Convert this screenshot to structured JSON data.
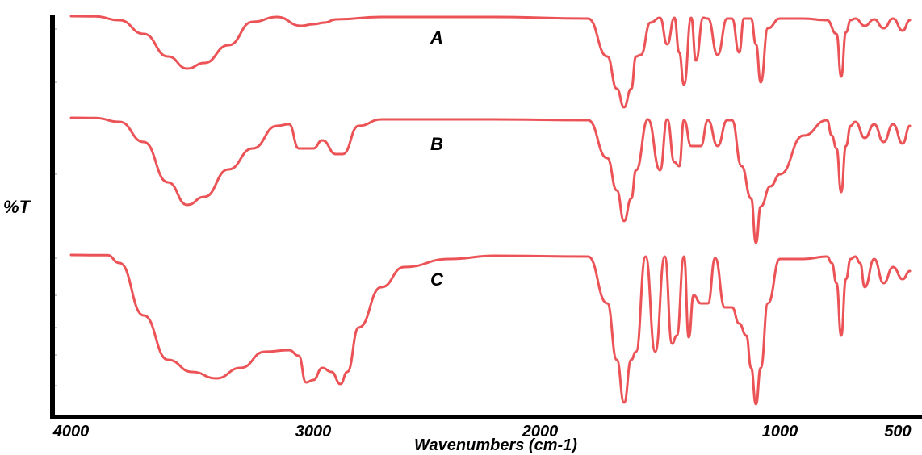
{
  "chart_data": {
    "type": "line",
    "title": "",
    "xlabel": "Wavenumbers (cm-1)",
    "ylabel": "%T",
    "xlim": [
      4000,
      450
    ],
    "x_reversed": true,
    "x_ticks": [
      4000,
      3000,
      2000,
      1000,
      500
    ],
    "x_tick_labels": [
      "4000",
      "3000",
      "2000",
      "1000",
      "500"
    ],
    "grid": false,
    "legend": "none",
    "line_color": "#e8353a",
    "series": [
      {
        "name": "A",
        "x": [
          4000,
          3900,
          3800,
          3700,
          3600,
          3520,
          3450,
          3350,
          3250,
          3150,
          3050,
          3000,
          2950,
          2900,
          2700,
          2200,
          1800,
          1720,
          1680,
          1650,
          1620,
          1600,
          1580,
          1540,
          1500,
          1470,
          1440,
          1420,
          1400,
          1370,
          1350,
          1320,
          1300,
          1260,
          1220,
          1200,
          1170,
          1150,
          1120,
          1100,
          1080,
          1050,
          1000,
          900,
          800,
          760,
          740,
          720,
          700,
          680,
          640,
          600,
          560,
          520,
          480,
          450
        ],
        "y": [
          0,
          0.3,
          5,
          22,
          50,
          65,
          58,
          36,
          7,
          1,
          12,
          10,
          8,
          4,
          1,
          1,
          3,
          50,
          90,
          113,
          90,
          50,
          48,
          8,
          2,
          35,
          2,
          45,
          85,
          2,
          55,
          2,
          3,
          48,
          3,
          3,
          45,
          3,
          3,
          35,
          82,
          15,
          3,
          3,
          5,
          22,
          75,
          20,
          5,
          3,
          12,
          4,
          15,
          3,
          18,
          5
        ]
      },
      {
        "name": "B",
        "x": [
          4000,
          3900,
          3800,
          3700,
          3600,
          3520,
          3450,
          3350,
          3250,
          3150,
          3100,
          3060,
          3000,
          2960,
          2900,
          2870,
          2800,
          2700,
          2200,
          1800,
          1720,
          1680,
          1650,
          1620,
          1600,
          1550,
          1500,
          1470,
          1440,
          1420,
          1400,
          1370,
          1330,
          1300,
          1260,
          1220,
          1200,
          1160,
          1120,
          1100,
          1080,
          1040,
          1000,
          900,
          800,
          780,
          760,
          740,
          720,
          700,
          680,
          640,
          600,
          560,
          520,
          480,
          450
        ],
        "y": [
          0,
          0.3,
          5,
          30,
          80,
          108,
          98,
          64,
          38,
          10,
          8,
          38,
          38,
          28,
          45,
          45,
          10,
          2,
          2,
          3,
          50,
          90,
          128,
          100,
          65,
          2,
          65,
          2,
          55,
          60,
          3,
          35,
          35,
          3,
          35,
          3,
          3,
          60,
          100,
          155,
          110,
          85,
          70,
          22,
          3,
          22,
          38,
          92,
          35,
          10,
          5,
          25,
          8,
          30,
          8,
          32,
          10
        ]
      },
      {
        "name": "C",
        "x": [
          4000,
          3900,
          3850,
          3800,
          3700,
          3600,
          3500,
          3400,
          3300,
          3200,
          3100,
          3060,
          3030,
          3000,
          2960,
          2920,
          2880,
          2850,
          2800,
          2700,
          2600,
          2400,
          2200,
          1800,
          1720,
          1680,
          1650,
          1620,
          1600,
          1560,
          1520,
          1480,
          1450,
          1430,
          1400,
          1380,
          1360,
          1330,
          1300,
          1270,
          1230,
          1200,
          1170,
          1140,
          1120,
          1100,
          1080,
          1050,
          1000,
          900,
          800,
          780,
          760,
          740,
          720,
          700,
          680,
          660,
          640,
          600,
          560,
          520,
          480,
          450
        ],
        "y": [
          0,
          0.3,
          0.3,
          10,
          75,
          130,
          145,
          153,
          140,
          120,
          118,
          125,
          158,
          155,
          140,
          145,
          160,
          145,
          90,
          40,
          15,
          5,
          1,
          2,
          60,
          130,
          183,
          130,
          120,
          2,
          120,
          2,
          110,
          100,
          2,
          102,
          50,
          60,
          60,
          4,
          65,
          65,
          85,
          100,
          140,
          185,
          140,
          60,
          5,
          5,
          2,
          10,
          35,
          100,
          30,
          5,
          2,
          10,
          40,
          5,
          35,
          15,
          30,
          20
        ]
      }
    ]
  },
  "labels": {
    "ylabel": "%T",
    "xlabel": "Wavenumbers (cm-1)"
  }
}
